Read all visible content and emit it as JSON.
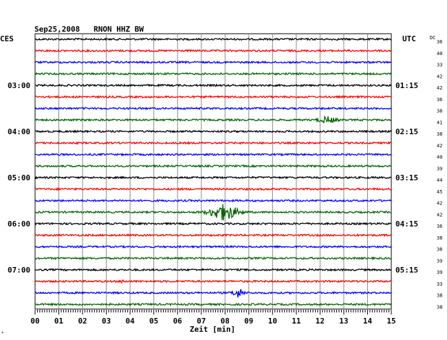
{
  "chart_data": {
    "type": "line",
    "title": "Sep25,2008   RNON HHZ BW",
    "left_timezone": "CES",
    "right_timezone": "UTC",
    "dc_label": "DC",
    "xlabel": "Zeit [min]",
    "xlim": [
      0,
      15
    ],
    "x_ticks": [
      "00",
      "01",
      "02",
      "03",
      "04",
      "05",
      "06",
      "07",
      "08",
      "09",
      "10",
      "11",
      "12",
      "13",
      "14",
      "15"
    ],
    "trace_colors": [
      "#000000",
      "#ff0000",
      "#0000ff",
      "#006600"
    ],
    "left_hour_labels": [
      {
        "trace": 4,
        "label": "03:00"
      },
      {
        "trace": 8,
        "label": "04:00"
      },
      {
        "trace": 12,
        "label": "05:00"
      },
      {
        "trace": 16,
        "label": "06:00"
      },
      {
        "trace": 20,
        "label": "07:00"
      }
    ],
    "right_hour_labels": [
      {
        "trace": 4,
        "label": "01:15"
      },
      {
        "trace": 8,
        "label": "02:15"
      },
      {
        "trace": 12,
        "label": "03:15"
      },
      {
        "trace": 16,
        "label": "04:15"
      },
      {
        "trace": 20,
        "label": "05:15"
      }
    ],
    "dc_values": [
      36,
      40,
      33,
      42,
      42,
      36,
      38,
      41,
      38,
      42,
      40,
      39,
      44,
      45,
      42,
      42,
      36,
      38,
      38,
      39,
      39,
      33,
      38,
      38
    ],
    "events": [
      {
        "trace": 7,
        "center_min": 12.3,
        "width_min": 0.9,
        "amplitude": 4
      },
      {
        "trace": 15,
        "center_min": 7.95,
        "width_min": 1.4,
        "amplitude": 11
      },
      {
        "trace": 21,
        "center_min": 3.7,
        "width_min": 0.15,
        "amplitude": 4
      },
      {
        "trace": 22,
        "center_min": 8.55,
        "width_min": 0.55,
        "amplitude": 6
      }
    ],
    "grid": true
  }
}
